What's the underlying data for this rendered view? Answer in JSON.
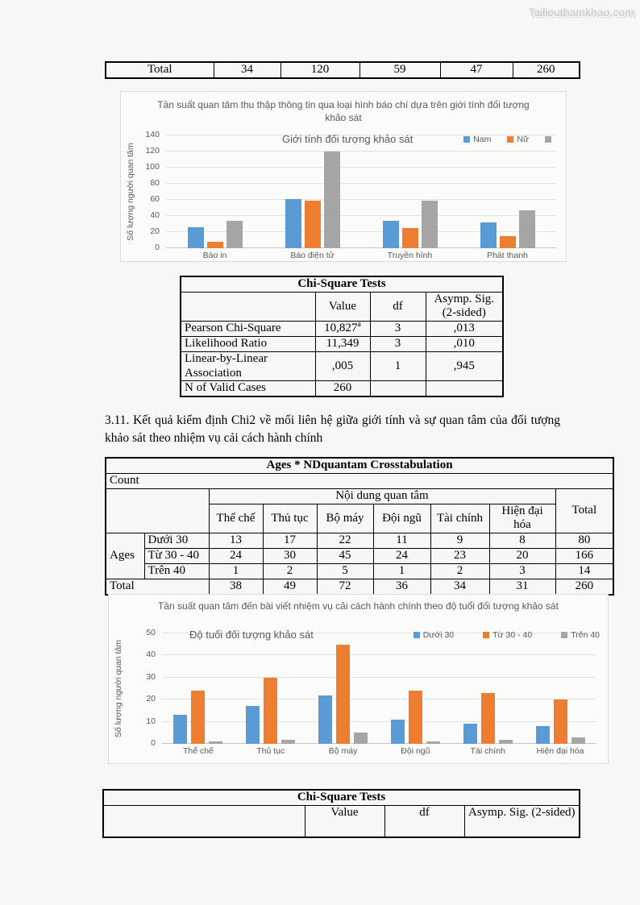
{
  "watermark": "Tailieuthamkhao.com",
  "colors": {
    "blue": "#5B9BD5",
    "orange": "#ED7D31",
    "gray": "#A5A5A5",
    "chart_text": "#595959"
  },
  "top_table": {
    "cells": [
      "Total",
      "34",
      "120",
      "59",
      "47",
      "260"
    ]
  },
  "section_text": "3.11. Kết quả kiểm định Chi2 về mối liên hệ giữa giới tính và sự quan tâm của đối tượng khảo sát theo nhiệm vụ cải cách hành chính",
  "chi_square_table_1": {
    "title": "Chi-Square Tests",
    "columns": {
      "value": "Value",
      "df": "df",
      "sig": "Asymp. Sig. (2-sided)"
    },
    "rows": [
      {
        "label": "Pearson Chi-Square",
        "value": "10,827",
        "value_sup": "a",
        "df": "3",
        "sig": ",013"
      },
      {
        "label": "Likelihood Ratio",
        "value": "11,349",
        "value_sup": "",
        "df": "3",
        "sig": ",010"
      },
      {
        "label": "Linear-by-Linear Association",
        "value": ",005",
        "value_sup": "",
        "df": "1",
        "sig": ",945"
      },
      {
        "label": "N of Valid Cases",
        "value": "260",
        "value_sup": "",
        "df": "",
        "sig": ""
      }
    ]
  },
  "crosstab": {
    "title": "Ages * NDquantam Crosstabulation",
    "count_label": "Count",
    "group_header": "Nội dung quan tâm",
    "total_label": "Total",
    "columns": [
      "Thể chế",
      "Thủ tục",
      "Bộ máy",
      "Đội ngũ",
      "Tài chính",
      "Hiện đại hóa"
    ],
    "row_group_label": "Ages",
    "rows": [
      {
        "label": "Dưới 30",
        "values": [
          13,
          17,
          22,
          11,
          9,
          8
        ],
        "total": 80
      },
      {
        "label": "Từ 30 - 40",
        "values": [
          24,
          30,
          45,
          24,
          23,
          20
        ],
        "total": 166
      },
      {
        "label": "Trên 40",
        "values": [
          1,
          2,
          5,
          1,
          2,
          3
        ],
        "total": 14
      }
    ],
    "total_row": {
      "label": "Total",
      "values": [
        38,
        49,
        72,
        36,
        34,
        31
      ],
      "total": 260
    }
  },
  "chi_square_table_2": {
    "title": "Chi-Square Tests",
    "columns": {
      "value": "Value",
      "df": "df",
      "sig": "Asymp. Sig. (2-sided)"
    }
  },
  "chart_data": [
    {
      "type": "bar",
      "title": "Tần suất quan tâm thu thập thông tin qua loại hình báo chí dựa trên giới tính đối tượng khảo sát",
      "inner_label": "Giới tính đối tượng khảo sát",
      "categories": [
        "Báo in",
        "Báo điện tử",
        "Truyền hình",
        "Phát thanh"
      ],
      "series": [
        {
          "name": "Nam",
          "color": "#5B9BD5",
          "values": [
            26,
            61,
            34,
            32
          ]
        },
        {
          "name": "Nữ",
          "color": "#ED7D31",
          "values": [
            8,
            59,
            25,
            15
          ]
        },
        {
          "name": "",
          "color": "#A5A5A5",
          "values": [
            34,
            120,
            59,
            47
          ]
        }
      ],
      "xlabel": "",
      "ylabel": "Số lượng người quan tâm",
      "ylim": [
        0,
        140
      ],
      "ystep": 20,
      "grid": true,
      "legend_position": "top-right-inside"
    },
    {
      "type": "bar",
      "title": "Tần suất quan tâm đến bài viết nhiệm vụ cải cách hành chính theo độ tuổi đối tượng khảo sát",
      "inner_label": "Độ tuổi đối tượng khảo sát",
      "categories": [
        "Thể chế",
        "Thủ tục",
        "Bộ máy",
        "Đội ngũ",
        "Tài chính",
        "Hiện đại hóa"
      ],
      "series": [
        {
          "name": "Dưới 30",
          "color": "#5B9BD5",
          "values": [
            13,
            17,
            22,
            11,
            9,
            8
          ]
        },
        {
          "name": "Từ 30 - 40",
          "color": "#ED7D31",
          "values": [
            24,
            30,
            45,
            24,
            23,
            20
          ]
        },
        {
          "name": "Trên 40",
          "color": "#A5A5A5",
          "values": [
            1,
            2,
            5,
            1,
            2,
            3
          ]
        }
      ],
      "xlabel": "",
      "ylabel": "Số lượng người quan tâm",
      "ylim": [
        0,
        50
      ],
      "ystep": 10,
      "grid": true,
      "legend_position": "top-right-inside"
    }
  ]
}
